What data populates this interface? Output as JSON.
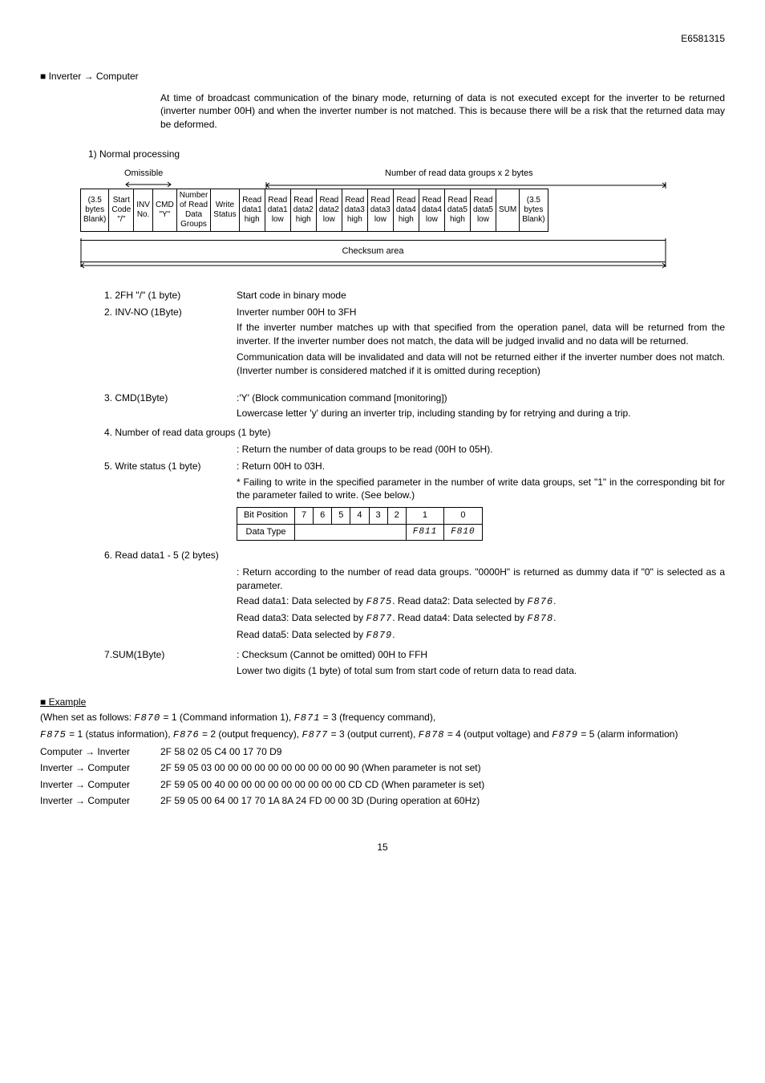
{
  "doc_id": "E6581315",
  "heading1": "■  Inverter → Computer",
  "intro_para": "At time of broadcast communication of the binary mode, returning of data is not executed except for the inverter to be returned (inverter number 00H) and when the inverter number is not matched. This is because there will be a risk that the returned data may be deformed.",
  "subheading1": "1) Normal processing",
  "omissible_label": "Omissible",
  "readgroups_label": "Number of read data groups x 2 bytes",
  "frame_cells": [
    "(3.5\nbytes\nBlank)",
    "Start\nCode\n\"/\"",
    "INV\nNo.",
    "CMD\n\"Y\"",
    "Number\nof Read\nData\nGroups",
    "Write\nStatus",
    "Read\ndata1\nhigh",
    "Read\ndata1\nlow",
    "Read\ndata2\nhigh",
    "Read\ndata2\nlow",
    "Read\ndata3\nhigh",
    "Read\ndata3\nlow",
    "Read\ndata4\nhigh",
    "Read\ndata4\nlow",
    "Read\ndata5\nhigh",
    "Read\ndata5\nlow",
    "SUM",
    "(3.5\nbytes\nBlank)"
  ],
  "checksum_label": "Checksum area",
  "items": {
    "i1_label": "1. 2FH \"/\" (1 byte)",
    "i1_desc": "Start code in binary mode",
    "i2_label": "2. INV-NO (1Byte)",
    "i2_desc_l1": "Inverter number      00H to 3FH",
    "i2_desc_l2": "If the inverter number matches up with that specified from the operation panel, data will be returned from the inverter. If the inverter number does not match, the data will be judged invalid and no data will be returned.",
    "i2_desc_l3": "Communication data will be invalidated and data will not be returned either if the inverter number does not match.    (Inverter number is considered matched if it is omitted during reception)",
    "i3_label": "3. CMD(1Byte)",
    "i3_desc_l1": ":'Y' (Block communication command [monitoring])",
    "i3_desc_l2": "Lowercase letter 'y' during an inverter trip, including standing by for retrying and during a trip.",
    "i4_label": "4. Number of read data groups (1 byte)",
    "i4_desc": ": Return the number of data groups to be read (00H to 05H).",
    "i5_label": "5. Write status (1 byte)",
    "i5_desc_l1": ": Return 00H to 03H.",
    "i5_desc_l2": "* Failing to write in the specified parameter in the number of write data groups, set \"1\" in the corresponding bit for the parameter failed to write.    (See below.)",
    "i6_label": "6. Read data1 - 5 (2 bytes)",
    "i6_desc_l1": ": Return according to the number of read data groups.    \"0000H\" is returned as dummy data if \"0\" is selected as a parameter.",
    "i6_desc_l2a": "Read data1: Data selected by ",
    "i6_desc_l2b": ".   Read data2: Data selected by ",
    "i6_desc_l3a": "Read data3: Data selected by ",
    "i6_desc_l3b": ".   Read data4: Data selected by ",
    "i6_desc_l4a": "Read data5: Data selected by ",
    "i7_label": "7.SUM(1Byte)",
    "i7_desc_l1": ": Checksum (Cannot be omitted) 00H to FFH",
    "i7_desc_l2": "Lower two digits (1 byte) of total sum from start code of return data to read data."
  },
  "seg": {
    "f875": "F875",
    "f876": "F876",
    "f877": "F877",
    "f878": "F878",
    "f879": "F879",
    "f811": "F811",
    "f810": "F810",
    "f870": "F870",
    "f871": "F871"
  },
  "bitpos": {
    "header": "Bit Position",
    "row2header": "Data Type",
    "cols": [
      "7",
      "6",
      "5",
      "4",
      "3",
      "2",
      "1",
      "0"
    ]
  },
  "example": {
    "heading": "■  Example",
    "line1a": "(When set as follows: ",
    "line1b": " (Command information 1), ",
    "line1c": " (frequency command),",
    "line2b": " (status information),   ",
    "line2c": " (output frequency), ",
    "line2d": " (output current), ",
    "line2e": " (output voltage) and ",
    "line2f": " (alarm information)",
    "v_f870": " = 1",
    "v_f871": " = 3",
    "v_f875": " = 1",
    "v_f876": " = 2",
    "v_f877": " = 3",
    "v_f878": " = 4",
    "v_f879": " = 5",
    "r1_label": "Computer → Inverter",
    "r1_data": "2F 58 02 05 C4 00 17 70 D9",
    "r2_label": "Inverter → Computer",
    "r2_data": "2F 59 05 03 00 00 00 00 00 00 00 00 00 00 90 (When parameter is not set)",
    "r3_label": "Inverter → Computer",
    "r3_data": "2F 59 05 00 40 00 00 00 00 00 00 00 00 00 CD CD (When parameter is set)",
    "r4_label": "Inverter → Computer",
    "r4_data": "2F 59 05 00 64 00 17 70 1A 8A 24 FD 00 00 3D (During operation at 60Hz)"
  },
  "page_number": "15"
}
